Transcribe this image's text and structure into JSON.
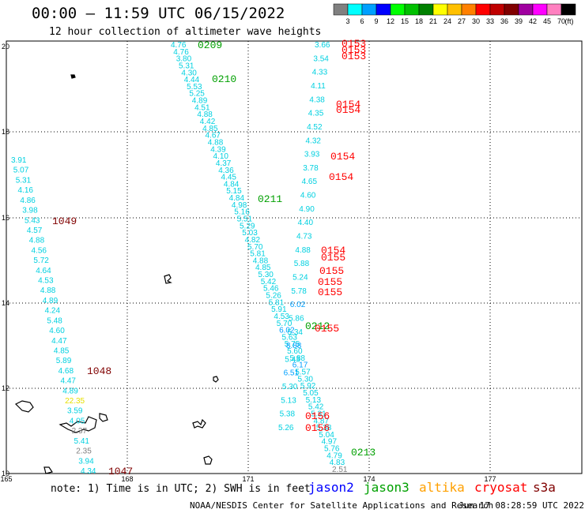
{
  "header": {
    "title": "00:00 – 11:59 UTC 06/15/2022",
    "subtitle": "12 hour collection of altimeter wave heights"
  },
  "colorbar": {
    "unit": "(ft)",
    "labels": [
      "3",
      "6",
      "9",
      "12",
      "15",
      "18",
      "21",
      "24",
      "27",
      "30",
      "33",
      "36",
      "39",
      "42",
      "45",
      "70"
    ],
    "colors": [
      "#808080",
      "#00ffff",
      "#00a0ff",
      "#0000ff",
      "#00ff00",
      "#00c000",
      "#008000",
      "#ffff00",
      "#ffc000",
      "#ff8000",
      "#ff0000",
      "#c00000",
      "#800000",
      "#a000a0",
      "#ff00ff",
      "#ff80c0",
      "#000000"
    ]
  },
  "axes": {
    "lat_labels": [
      "20",
      "18",
      "16",
      "14",
      "12",
      "10"
    ],
    "lon_labels": [
      "165",
      "168",
      "171",
      "174",
      "177"
    ]
  },
  "passes": [
    {
      "label": "0153",
      "color": "#ff0000"
    },
    {
      "label": "0153",
      "color": "#ff0000"
    },
    {
      "label": "0153",
      "color": "#ff0000"
    },
    {
      "label": "0209",
      "color": "#00a000"
    },
    {
      "label": "0210",
      "color": "#00a000"
    },
    {
      "label": "0154",
      "color": "#ff0000"
    },
    {
      "label": "0154",
      "color": "#ff0000"
    },
    {
      "label": "0154",
      "color": "#ff0000"
    },
    {
      "label": "0154",
      "color": "#ff0000"
    },
    {
      "label": "0211",
      "color": "#00a000"
    },
    {
      "label": "1049",
      "color": "#800000"
    },
    {
      "label": "0154",
      "color": "#ff0000"
    },
    {
      "label": "0155",
      "color": "#ff0000"
    },
    {
      "label": "0155",
      "color": "#ff0000"
    },
    {
      "label": "0155",
      "color": "#ff0000"
    },
    {
      "label": "0155",
      "color": "#ff0000"
    },
    {
      "label": "0212",
      "color": "#00a000"
    },
    {
      "label": "0155",
      "color": "#ff0000"
    },
    {
      "label": "1048",
      "color": "#800000"
    },
    {
      "label": "0156",
      "color": "#ff0000"
    },
    {
      "label": "0156",
      "color": "#ff0000"
    },
    {
      "label": "0213",
      "color": "#00a000"
    },
    {
      "label": "1047",
      "color": "#800000"
    }
  ],
  "track_altika": [
    "3.91",
    "5.07",
    "5.31",
    "4.16",
    "4.86",
    "3.98",
    "5.43",
    "4.57",
    "4.88",
    "4.56",
    "5.72",
    "4.64",
    "4.53",
    "4.88",
    "4.89",
    "4.24",
    "5.48",
    "4.60",
    "4.47",
    "4.85",
    "5.89",
    "4.68",
    "4.47",
    "4.89",
    "22.35",
    "3.59",
    "4.05",
    "2.37",
    "5.41",
    "2.35",
    "3.94",
    "4.34"
  ],
  "track_jason3": [
    "4.76",
    "4.76",
    "3.80",
    "5.31",
    "4.30",
    "4.44",
    "5.53",
    "5.25",
    "4.89",
    "4.51",
    "4.88",
    "4.42",
    "4.85",
    "4.67",
    "4.88",
    "4.39",
    "4.10",
    "4.37",
    "4.36",
    "4.45",
    "4.84",
    "5.15",
    "4.84",
    "4.98",
    "5.16",
    "5.51",
    "5.29",
    "5.03",
    "4.82",
    "5.70",
    "5.81",
    "4.88",
    "4.85",
    "5.30",
    "5.42",
    "5.46",
    "5.26",
    "5.81",
    "5.91",
    "4.53",
    "5.70",
    "6.02",
    "5.63",
    "5.75",
    "5.60",
    "5.88",
    "6.17",
    "5.57",
    "5.30",
    "5.92",
    "5.05",
    "5.13",
    "5.42",
    "5.31",
    "4.87",
    "5.38",
    "5.04",
    "4.97",
    "5.76",
    "4.79",
    "4.83",
    "2.51"
  ],
  "track_cryosat": [
    "3.66",
    "3.54",
    "4.33",
    "4.11",
    "4.38",
    "4.35",
    "4.52",
    "4.32",
    "3.93",
    "3.78",
    "4.65",
    "4.60",
    "4.90",
    "4.40",
    "4.73",
    "4.88",
    "5.88",
    "5.24",
    "5.78",
    "6.02",
    "5.86",
    "5.34",
    "8.88",
    "5.43",
    "6.51",
    "5.30",
    "5.13",
    "5.38",
    "5.26"
  ],
  "footer": {
    "note": "note: 1) Time is in UTC; 2) SWH is in feet",
    "satellites": [
      {
        "name": "jason2",
        "color": "#0000ff"
      },
      {
        "name": "jason3",
        "color": "#00a000"
      },
      {
        "name": "altika",
        "color": "#ffa000"
      },
      {
        "name": "cryosat",
        "color": "#ff0000"
      },
      {
        "name": "s3a",
        "color": "#800000"
      }
    ],
    "credit": "NOAA/NESDIS Center for Satellite Applications and Research",
    "timestamp": "Jun 17 08:28:59 UTC 2022"
  }
}
